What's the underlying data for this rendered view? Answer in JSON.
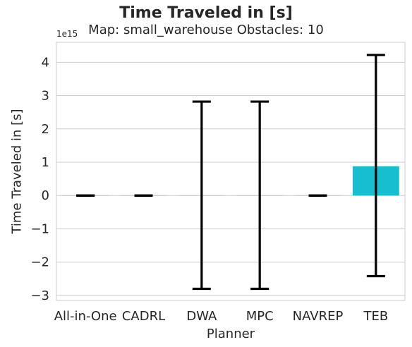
{
  "chart_data": {
    "type": "bar",
    "title": "Time Traveled in [s]",
    "subtitle": "Map: small_warehouse Obstacles: 10",
    "xlabel": "Planner",
    "ylabel": "Time Traveled in [s]",
    "y_offset_label": "1e15",
    "y_scale": 1000000000000000.0,
    "ylim": [
      -3.15,
      4.6
    ],
    "yticks": [
      -3,
      -2,
      -1,
      0,
      1,
      2,
      3,
      4
    ],
    "ytick_labels": [
      "−3",
      "−2",
      "−1",
      "0",
      "1",
      "2",
      "3",
      "4"
    ],
    "grid": true,
    "categories": [
      "All-in-One",
      "CADRL",
      "DWA",
      "MPC",
      "NAVREP",
      "TEB"
    ],
    "values": [
      0.0,
      0.0,
      0.0,
      0.0,
      0.0,
      0.88
    ],
    "error_low": [
      0.0,
      0.0,
      -2.8,
      -2.8,
      0.0,
      -2.42
    ],
    "error_high": [
      0.0,
      0.0,
      2.82,
      2.82,
      0.0,
      4.22
    ],
    "bar_colors": [
      "#cccccc",
      "#cccccc",
      "#cccccc",
      "#cccccc",
      "#cccccc",
      "#17becf"
    ]
  }
}
